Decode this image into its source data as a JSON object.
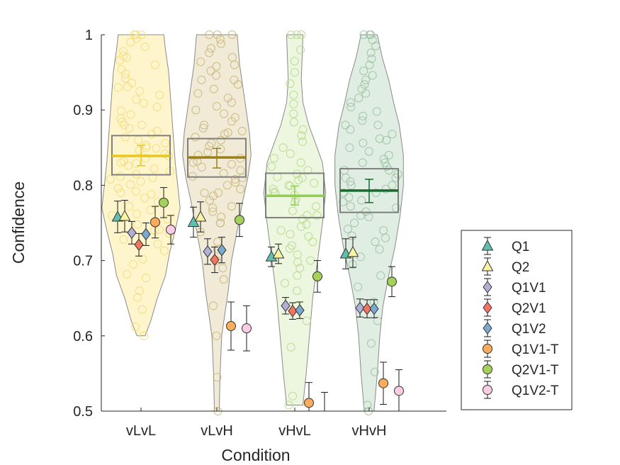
{
  "chart_data": {
    "type": "violin-scatter",
    "xlabel": "Condition",
    "ylabel": "Confidence",
    "ylim": [
      0.5,
      1.0
    ],
    "yticks": [
      0.5,
      0.6,
      0.7,
      0.8,
      0.9,
      1.0
    ],
    "ytick_labels": [
      "0.5",
      "0.6",
      "0.7",
      "0.8",
      "0.9",
      "1"
    ],
    "categories": [
      "vLvL",
      "vLvH",
      "vHvL",
      "vHvH"
    ],
    "legend_position": "right",
    "conditions": [
      {
        "name": "vLvL",
        "fill": "#fff0b0",
        "edge": "#f2dc7a",
        "mean_color": "#e8c81c",
        "mean": 0.839,
        "mean_err": [
          0.826,
          0.853
        ],
        "box": [
          0.814,
          0.866
        ],
        "violin_min": 0.6,
        "violin_max": 1.0,
        "violin_profile": [
          [
            0.6,
            0.005
          ],
          [
            0.62,
            0.012
          ],
          [
            0.65,
            0.02
          ],
          [
            0.68,
            0.03
          ],
          [
            0.71,
            0.035
          ],
          [
            0.74,
            0.042
          ],
          [
            0.77,
            0.048
          ],
          [
            0.8,
            0.045
          ],
          [
            0.83,
            0.042
          ],
          [
            0.86,
            0.04
          ],
          [
            0.89,
            0.038
          ],
          [
            0.92,
            0.036
          ],
          [
            0.95,
            0.034
          ],
          [
            0.98,
            0.03
          ],
          [
            1.0,
            0.028
          ]
        ]
      },
      {
        "name": "vLvH",
        "fill": "#e8dfc0",
        "edge": "#c9b77a",
        "mean_color": "#9c8016",
        "mean": 0.837,
        "mean_err": [
          0.823,
          0.849
        ],
        "box": [
          0.811,
          0.862
        ],
        "violin_min": 0.5,
        "violin_max": 1.0,
        "violin_profile": [
          [
            0.5,
            0.003
          ],
          [
            0.55,
            0.004
          ],
          [
            0.6,
            0.006
          ],
          [
            0.63,
            0.01
          ],
          [
            0.66,
            0.014
          ],
          [
            0.7,
            0.018
          ],
          [
            0.74,
            0.025
          ],
          [
            0.78,
            0.032
          ],
          [
            0.81,
            0.038
          ],
          [
            0.84,
            0.042
          ],
          [
            0.87,
            0.04
          ],
          [
            0.9,
            0.036
          ],
          [
            0.93,
            0.032
          ],
          [
            0.96,
            0.028
          ],
          [
            1.0,
            0.025
          ]
        ]
      },
      {
        "name": "vHvL",
        "fill": "#e3f2cf",
        "edge": "#b7d98e",
        "mean_color": "#8fd14a",
        "mean": 0.786,
        "mean_err": [
          0.774,
          0.799
        ],
        "box": [
          0.757,
          0.816
        ],
        "violin_min": 0.508,
        "violin_max": 1.0,
        "violin_profile": [
          [
            0.508,
            0.01
          ],
          [
            0.55,
            0.014
          ],
          [
            0.6,
            0.018
          ],
          [
            0.65,
            0.022
          ],
          [
            0.7,
            0.028
          ],
          [
            0.75,
            0.034
          ],
          [
            0.79,
            0.038
          ],
          [
            0.83,
            0.034
          ],
          [
            0.86,
            0.024
          ],
          [
            0.88,
            0.017
          ],
          [
            0.91,
            0.01
          ],
          [
            0.94,
            0.008
          ],
          [
            0.97,
            0.009
          ],
          [
            1.0,
            0.01
          ]
        ]
      },
      {
        "name": "vHvH",
        "fill": "#cfe3d2",
        "edge": "#9cc2a2",
        "mean_color": "#146b2b",
        "mean": 0.793,
        "mean_err": [
          0.777,
          0.808
        ],
        "box": [
          0.764,
          0.822
        ],
        "violin_min": 0.5,
        "violin_max": 1.0,
        "violin_profile": [
          [
            0.5,
            0.006
          ],
          [
            0.55,
            0.01
          ],
          [
            0.6,
            0.013
          ],
          [
            0.64,
            0.017
          ],
          [
            0.68,
            0.024
          ],
          [
            0.72,
            0.032
          ],
          [
            0.76,
            0.038
          ],
          [
            0.8,
            0.042
          ],
          [
            0.84,
            0.042
          ],
          [
            0.88,
            0.037
          ],
          [
            0.91,
            0.03
          ],
          [
            0.94,
            0.024
          ],
          [
            0.97,
            0.016
          ],
          [
            1.0,
            0.01
          ]
        ]
      }
    ],
    "series": [
      {
        "name": "Q1",
        "marker": "triangle",
        "color": "#5fc1ad",
        "values": [
          0.758,
          0.751,
          0.705,
          0.709
        ],
        "err": [
          0.021,
          0.02,
          0.013,
          0.02
        ]
      },
      {
        "name": "Q2",
        "marker": "triangle",
        "color": "#f7f4a3",
        "values": [
          0.759,
          0.758,
          0.709,
          0.711
        ],
        "err": [
          0.021,
          0.02,
          0.013,
          0.02
        ]
      },
      {
        "name": "Q1V1",
        "marker": "diamond",
        "color": "#b3aed5",
        "values": [
          0.737,
          0.712,
          0.64,
          0.637
        ],
        "err": [
          0.015,
          0.017,
          0.011,
          0.012
        ]
      },
      {
        "name": "Q2V1",
        "marker": "diamond",
        "color": "#f47462",
        "values": [
          0.721,
          0.701,
          0.633,
          0.636
        ],
        "err": [
          0.015,
          0.017,
          0.011,
          0.012
        ]
      },
      {
        "name": "Q1V2",
        "marker": "diamond",
        "color": "#7aa9cf",
        "values": [
          0.735,
          0.714,
          0.634,
          0.636
        ],
        "err": [
          0.015,
          0.017,
          0.011,
          0.012
        ]
      },
      {
        "name": "Q1V1-T",
        "marker": "circle",
        "color": "#fbac5a",
        "values": [
          0.751,
          0.613,
          0.511,
          0.537
        ],
        "err": [
          0.021,
          0.032,
          0.027,
          0.028
        ]
      },
      {
        "name": "Q2V1-T",
        "marker": "circle",
        "color": "#a4d15a",
        "values": [
          0.777,
          0.754,
          0.679,
          0.672
        ],
        "err": [
          0.02,
          0.022,
          0.021,
          0.02
        ]
      },
      {
        "name": "Q1V2-T",
        "marker": "circle",
        "color": "#fbcde3",
        "values": [
          0.741,
          0.61,
          0.495,
          0.527
        ],
        "err": [
          0.019,
          0.03,
          0.03,
          0.028
        ]
      }
    ],
    "scatter_points": [
      [
        0.6,
        0.612,
        0.635,
        0.651,
        0.66,
        0.677,
        0.682,
        0.695,
        0.702,
        0.713,
        0.722,
        0.728,
        0.736,
        0.741,
        0.748,
        0.755,
        0.762,
        0.767,
        0.772,
        0.778,
        0.783,
        0.788,
        0.792,
        0.796,
        0.801,
        0.805,
        0.808,
        0.812,
        0.815,
        0.819,
        0.822,
        0.826,
        0.829,
        0.832,
        0.836,
        0.839,
        0.842,
        0.846,
        0.849,
        0.853,
        0.856,
        0.86,
        0.864,
        0.868,
        0.872,
        0.876,
        0.88,
        0.884,
        0.889,
        0.894,
        0.899,
        0.904,
        0.909,
        0.914,
        0.92,
        0.925,
        0.931,
        0.936,
        0.942,
        0.948,
        0.954,
        0.96,
        0.966,
        0.972,
        0.978,
        0.984,
        0.99,
        0.995,
        1.0,
        1.0,
        1.0,
        0.97,
        0.93,
        0.88,
        0.85,
        0.83,
        0.81,
        0.79,
        0.76,
        0.74
      ],
      [
        0.5,
        0.545,
        0.6,
        0.64,
        0.675,
        0.69,
        0.7,
        0.715,
        0.725,
        0.738,
        0.75,
        0.758,
        0.765,
        0.772,
        0.78,
        0.786,
        0.79,
        0.795,
        0.8,
        0.804,
        0.808,
        0.812,
        0.816,
        0.82,
        0.824,
        0.828,
        0.832,
        0.836,
        0.84,
        0.844,
        0.848,
        0.852,
        0.856,
        0.86,
        0.864,
        0.868,
        0.872,
        0.876,
        0.88,
        0.885,
        0.89,
        0.895,
        0.9,
        0.905,
        0.91,
        0.916,
        0.922,
        0.928,
        0.934,
        0.94,
        0.946,
        0.952,
        0.958,
        0.964,
        0.97,
        0.976,
        0.982,
        0.988,
        0.994,
        1.0,
        1.0,
        1.0,
        0.96,
        0.94,
        0.87,
        0.83,
        0.81,
        0.79,
        0.77,
        0.75
      ],
      [
        0.508,
        0.52,
        0.585,
        0.62,
        0.64,
        0.66,
        0.68,
        0.698,
        0.708,
        0.716,
        0.725,
        0.732,
        0.74,
        0.748,
        0.755,
        0.76,
        0.766,
        0.772,
        0.778,
        0.782,
        0.787,
        0.791,
        0.795,
        0.799,
        0.803,
        0.807,
        0.811,
        0.815,
        0.82,
        0.825,
        0.83,
        0.836,
        0.842,
        0.85,
        0.858,
        0.866,
        0.874,
        0.884,
        0.895,
        0.908,
        0.92,
        0.935,
        0.95,
        0.965,
        0.98,
        1.0,
        1.0,
        1.0,
        0.76,
        0.745,
        0.735,
        0.72,
        0.79,
        0.8,
        0.81,
        0.7,
        0.69,
        0.67
      ],
      [
        0.5,
        0.508,
        0.552,
        0.59,
        0.62,
        0.645,
        0.665,
        0.68,
        0.695,
        0.705,
        0.715,
        0.725,
        0.733,
        0.742,
        0.75,
        0.758,
        0.765,
        0.772,
        0.778,
        0.784,
        0.79,
        0.795,
        0.8,
        0.805,
        0.81,
        0.815,
        0.82,
        0.825,
        0.83,
        0.835,
        0.84,
        0.845,
        0.85,
        0.856,
        0.862,
        0.868,
        0.874,
        0.88,
        0.886,
        0.892,
        0.898,
        0.904,
        0.91,
        0.916,
        0.922,
        0.928,
        0.934,
        0.94,
        0.946,
        0.952,
        0.96,
        0.968,
        0.976,
        0.985,
        0.993,
        1.0,
        1.0,
        1.0,
        0.77,
        0.78,
        0.79,
        0.8,
        0.81,
        0.73,
        0.74,
        0.76,
        0.82,
        0.83,
        0.86,
        0.88
      ]
    ]
  }
}
